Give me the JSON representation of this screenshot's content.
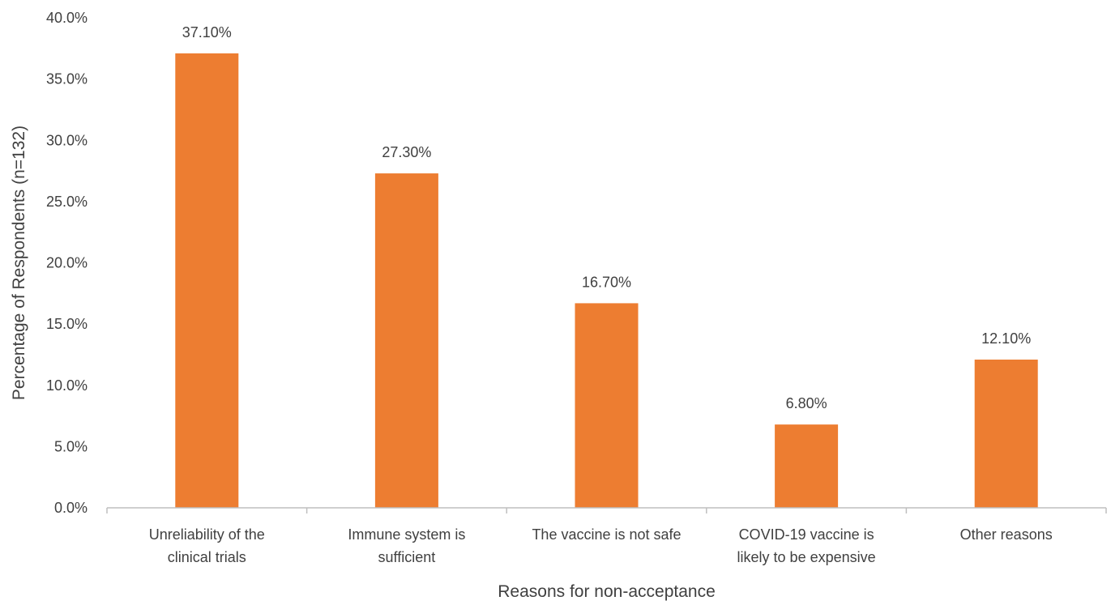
{
  "chart_data": {
    "type": "bar",
    "title": "",
    "xlabel": "Reasons for non-acceptance",
    "ylabel": "Percentage of Respondents (n=132)",
    "ylim": [
      0,
      40
    ],
    "yticks": [
      "0.0%",
      "5.0%",
      "10.0%",
      "15.0%",
      "20.0%",
      "25.0%",
      "30.0%",
      "35.0%",
      "40.0%"
    ],
    "categories": [
      [
        "Unreliability of the",
        "clinical trials"
      ],
      [
        "Immune system is",
        "sufficient"
      ],
      [
        "The vaccine is not safe"
      ],
      [
        "COVID-19 vaccine is",
        "likely to be expensive"
      ],
      [
        "Other reasons"
      ]
    ],
    "values": [
      37.1,
      27.3,
      16.7,
      6.8,
      12.1
    ],
    "data_labels": [
      "37.10%",
      "27.30%",
      "16.70%",
      "6.80%",
      "12.10%"
    ],
    "bar_color": "#ED7D31",
    "axis_color": "#BFBFBF",
    "grid": false,
    "legend": "none"
  }
}
